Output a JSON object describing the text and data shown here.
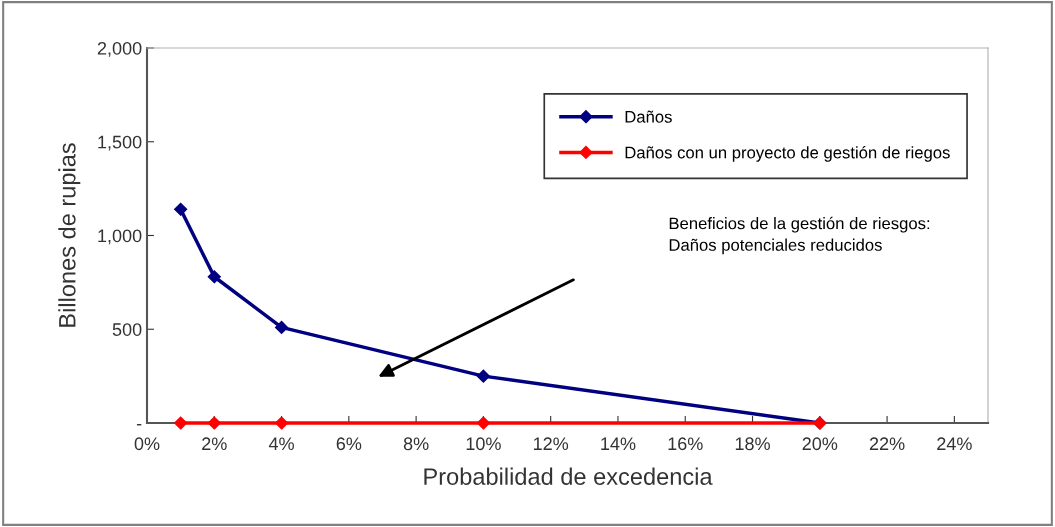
{
  "chart_data": {
    "type": "line",
    "xlabel": "Probabilidad de excedencia",
    "ylabel": "Billones de rupias",
    "x": [
      0.01,
      0.02,
      0.04,
      0.1,
      0.2
    ],
    "series": [
      {
        "name": "Daños",
        "color": "#000080",
        "values": [
          1140,
          780,
          510,
          250,
          0
        ]
      },
      {
        "name": "Daños con un proyecto de gestión de riegos",
        "color": "#ff0000",
        "values": [
          0,
          0,
          0,
          0,
          0
        ]
      }
    ],
    "xlim": [
      0,
      0.25
    ],
    "xticks": [
      {
        "value": 0,
        "label": "0%"
      },
      {
        "value": 0.02,
        "label": "2%"
      },
      {
        "value": 0.04,
        "label": "4%"
      },
      {
        "value": 0.06,
        "label": "6%"
      },
      {
        "value": 0.08,
        "label": "8%"
      },
      {
        "value": 0.1,
        "label": "10%"
      },
      {
        "value": 0.12,
        "label": "12%"
      },
      {
        "value": 0.14,
        "label": "14%"
      },
      {
        "value": 0.16,
        "label": "16%"
      },
      {
        "value": 0.18,
        "label": "18%"
      },
      {
        "value": 0.2,
        "label": "20%"
      },
      {
        "value": 0.22,
        "label": "22%"
      },
      {
        "value": 0.24,
        "label": "24%"
      }
    ],
    "ylim": [
      0,
      2000
    ],
    "yticks": [
      {
        "value": 0,
        "label": "-"
      },
      500,
      {
        "value": 1000,
        "label": "1,000"
      },
      {
        "value": 1500,
        "label": "1,500"
      },
      {
        "value": 2000,
        "label": "2,000"
      }
    ],
    "annotations": [
      "Beneficios de la gestión de riesgos:\nDaños potenciales reducidos"
    ],
    "grid": false,
    "legend": "top right",
    "marker": "diamond",
    "line_style": "solid"
  }
}
